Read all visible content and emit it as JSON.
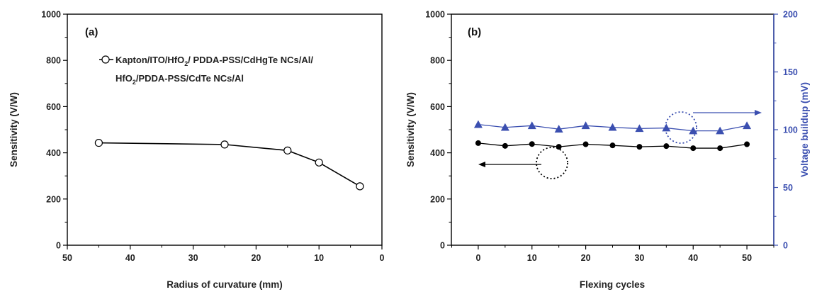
{
  "chart_data": [
    {
      "type": "line",
      "panel_label": "(a)",
      "xlabel": "Radius of curvature (mm)",
      "ylabel": "Sensitivity (V/W)",
      "xlim": [
        50,
        0
      ],
      "ylim": [
        0,
        1000
      ],
      "x_ticks": [
        50,
        40,
        30,
        20,
        10,
        0
      ],
      "y_ticks": [
        0,
        200,
        400,
        600,
        800,
        1000
      ],
      "legend_position": "top-left",
      "series": [
        {
          "name_parts": [
            "Kapton/ITO/HfO",
            "2",
            "/ PDDA-PSS/CdHgTe NCs/Al/",
            "HfO",
            "2",
            "/PDDA-PSS/CdTe NCs/Al"
          ],
          "marker": "open-circle",
          "color": "#000000",
          "x": [
            45,
            25,
            15,
            10,
            3.5
          ],
          "y": [
            443,
            436,
            410,
            358,
            255
          ]
        }
      ]
    },
    {
      "type": "line",
      "panel_label": "(b)",
      "xlabel": "Flexing cycles",
      "ylabel": "Sensitivity (V/W)",
      "y2label": "Voltage buildup (mV)",
      "xlim": [
        -5,
        55
      ],
      "ylim": [
        0,
        1000
      ],
      "y2lim": [
        0,
        200
      ],
      "x_ticks": [
        0,
        10,
        20,
        30,
        40,
        50
      ],
      "y_ticks": [
        0,
        200,
        400,
        600,
        800,
        1000
      ],
      "y2_ticks": [
        0,
        50,
        100,
        150,
        200
      ],
      "series": [
        {
          "axis": "left",
          "marker": "filled-circle",
          "color": "#000000",
          "x": [
            0,
            5,
            10,
            15,
            20,
            25,
            30,
            35,
            40,
            45,
            50
          ],
          "y": [
            442,
            430,
            438,
            426,
            437,
            432,
            426,
            429,
            420,
            420,
            437
          ]
        },
        {
          "axis": "right",
          "marker": "filled-triangle",
          "color": "#3b4fb0",
          "x": [
            0,
            5,
            10,
            15,
            20,
            25,
            30,
            35,
            40,
            45,
            50
          ],
          "y": [
            104.5,
            102,
            103.5,
            100.5,
            103.5,
            102,
            101,
            101.5,
            99,
            99,
            103.5
          ]
        }
      ]
    }
  ]
}
